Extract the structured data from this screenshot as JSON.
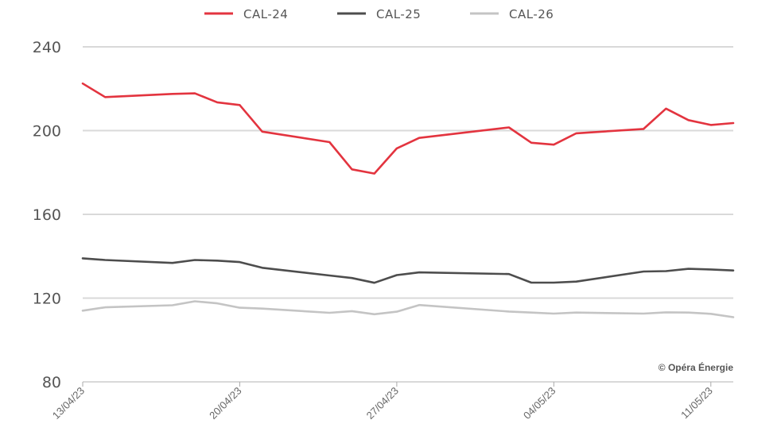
{
  "chart_data": {
    "type": "line",
    "x": [
      "13/04/23",
      "14/04/23",
      "17/04/23",
      "18/04/23",
      "19/04/23",
      "20/04/23",
      "21/04/23",
      "24/04/23",
      "25/04/23",
      "26/04/23",
      "27/04/23",
      "28/04/23",
      "02/05/23",
      "03/05/23",
      "04/05/23",
      "05/05/23",
      "08/05/23",
      "09/05/23",
      "10/05/23",
      "11/05/23",
      "12/05/23"
    ],
    "series": [
      {
        "name": "CAL-24",
        "color": "#e3343f",
        "values": [
          222.5,
          216,
          217.5,
          217.8,
          213.5,
          212.2,
          199.5,
          194.5,
          181.5,
          179.5,
          191.5,
          196.5,
          201.5,
          194.2,
          193.3,
          198.7,
          200.8,
          210.5,
          205,
          202.7,
          203.6
        ]
      },
      {
        "name": "CAL-25",
        "color": "#4d4d4d",
        "values": [
          139,
          138.2,
          136.8,
          138.2,
          137.9,
          137.2,
          134.5,
          130.8,
          129.6,
          127.3,
          131,
          132.3,
          131.5,
          127.4,
          127.4,
          127.9,
          132.7,
          132.9,
          134,
          133.7,
          133.2
        ]
      },
      {
        "name": "CAL-26",
        "color": "#c4c4c4",
        "values": [
          114,
          115.6,
          116.6,
          118.5,
          117.5,
          115.4,
          115,
          113,
          113.8,
          112.3,
          113.5,
          116.7,
          113.6,
          113.1,
          112.6,
          113.1,
          112.6,
          113.2,
          113.1,
          112.5,
          110.9
        ]
      }
    ],
    "x_tick_labels": [
      "13/04/23",
      "20/04/23",
      "27/04/23",
      "04/05/23",
      "11/05/23"
    ],
    "y_ticks": [
      80,
      120,
      160,
      200,
      240
    ],
    "ylim": [
      80,
      240
    ],
    "grid": true,
    "legend_position": "top-center",
    "title": "",
    "xlabel": "",
    "ylabel": ""
  },
  "credit": "© Opéra Énergie",
  "colors": {
    "grid": "#d9d9d9",
    "axis": "#aaaaaa",
    "text": "#555555"
  }
}
